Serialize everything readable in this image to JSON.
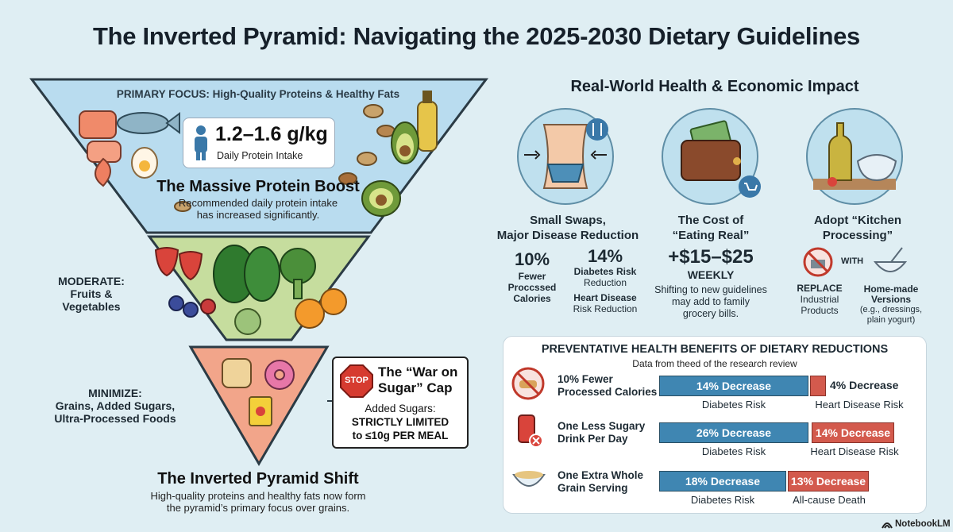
{
  "title": "The Inverted Pyramid: Navigating the 2025-2030 Dietary Guidelines",
  "pyramid": {
    "primary_focus": "PRIMARY FOCUS: High-Quality Proteins & Healthy Fats",
    "protein_value": "1.2–1.6 g/kg",
    "protein_caption": "Daily Protein Intake",
    "boost_title": "The Massive Protein Boost",
    "boost_desc_1": "Recommended daily protein intake",
    "boost_desc_2": "has increased significantly.",
    "moderate_1": "MODERATE:",
    "moderate_2": "Fruits &",
    "moderate_3": "Vegetables",
    "minimize_1": "MINIMIZE:",
    "minimize_2": "Grains, Added Sugars,",
    "minimize_3": "Ultra-Processed Foods",
    "sugar_title_1": "The “War on",
    "sugar_title_2": "Sugar” Cap",
    "sugar_line_1": "Added Sugars:",
    "sugar_line_2": "STRICTLY LIMITED",
    "sugar_line_3": "to ≤10g PER MEAL",
    "stop_text": "STOP",
    "shift_title": "The Inverted Pyramid Shift",
    "shift_desc_1": "High-quality proteins and healthy fats now form",
    "shift_desc_2": "the pyramid’s primary focus over grains."
  },
  "impact": {
    "heading": "Real-World Health & Economic Impact",
    "col1": {
      "title_1": "Small Swaps,",
      "title_2": "Major Disease Reduction",
      "stat1_value": "10%",
      "stat1_l1": "Fewer",
      "stat1_l2": "Proccssed",
      "stat1_l3": "Calories",
      "stat2_value": "14%",
      "stat2_l1": "Diabetes Risk",
      "stat2_l2": "Reduction",
      "stat3_l1": "Heart Disease",
      "stat3_l2": "Risk Reduction"
    },
    "col2": {
      "title_1": "The Cost of",
      "title_2": "“Eating Real”",
      "value": "+$15–$25",
      "unit": "WEEKLY",
      "desc_1": "Shifting to new guidelines",
      "desc_2": "may add to family",
      "desc_3": "grocery bills."
    },
    "col3": {
      "title_1": "Adopt “Kitchen",
      "title_2": "Processing”",
      "with": "WITH",
      "replace_1": "REPLACE",
      "replace_2": "Industrial",
      "replace_3": "Products",
      "home_1": "Home-made",
      "home_2": "Versions",
      "home_3": "(e.g., dressings,",
      "home_4": "plain yogurt)"
    }
  },
  "benefits": {
    "heading": "PREVENTATIVE HEALTH BENEFITS OF DIETARY REDUCTIONS",
    "subheading": "Data from theed of the research review",
    "rows": [
      {
        "label_1": "10% Fewer",
        "label_2": "Processed Calories",
        "bar1_text": "14% Decrease",
        "bar1_value": 14,
        "bar1_caption": "Diabetes Risk",
        "bar2_text": "4% Decrease",
        "bar2_value": 4,
        "bar2_caption": "Heart Disease Risk"
      },
      {
        "label_1": "One Less Sugary",
        "label_2": "Drink Per Day",
        "bar1_text": "26% Decrease",
        "bar1_value": 26,
        "bar1_caption": "Diabetes Risk",
        "bar2_text": "14% Decrease",
        "bar2_value": 14,
        "bar2_caption": "Heart Disease Risk"
      },
      {
        "label_1": "One Extra Whole",
        "label_2": "Grain Serving",
        "bar1_text": "18% Decrease",
        "bar1_value": 18,
        "bar1_caption": "Diabetes Risk",
        "bar2_text": "13% Decrease",
        "bar2_value": 13,
        "bar2_caption": "All-cause Death"
      }
    ]
  },
  "brand": "NotebookLM",
  "colors": {
    "top_tier": "#b9dcef",
    "mid_tier": "#c6dd9e",
    "bottom_tier": "#f2a58a",
    "bar_blue": "#3f86b2",
    "bar_red": "#d35a4d"
  }
}
